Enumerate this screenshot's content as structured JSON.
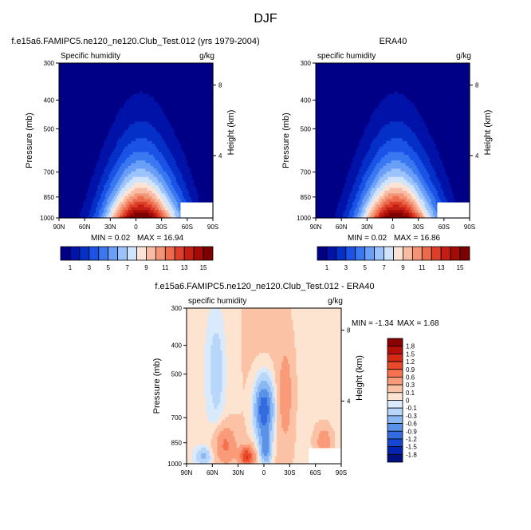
{
  "page_title": "DJF",
  "chart_data": [
    {
      "type": "heatmap",
      "title": "f.e15a6.FAMIPC5.ne120_ne120.Club_Test.012 (yrs 1979-2004)",
      "variable": "Specific humidity",
      "units": "g/kg",
      "ylabel": "Pressure (mb)",
      "ylabel_right": "Height (km)",
      "x_ticks": [
        "90N",
        "60N",
        "30N",
        "0",
        "30S",
        "60S",
        "90S"
      ],
      "y_ticks": [
        "300",
        "400",
        "500",
        "700",
        "850",
        "1000"
      ],
      "height_ticks": [
        "8",
        "4"
      ],
      "min_label": "MIN =  0.02",
      "max_label": "MAX = 16.94",
      "min": 0.02,
      "max": 16.94,
      "contour_levels": [
        1,
        2,
        3,
        4,
        5,
        6,
        7,
        8,
        9,
        10,
        11,
        12,
        13,
        14,
        15
      ],
      "colorbar_labels": [
        "1",
        "3",
        "5",
        "7",
        "9",
        "11",
        "13",
        "15"
      ],
      "colorbar_colors": [
        "#000087",
        "#0012a8",
        "#0530c8",
        "#1a53e6",
        "#3a78f2",
        "#6a9ff8",
        "#9cc3fb",
        "#d0e4fc",
        "#fbe3d6",
        "#f8bca4",
        "#f39476",
        "#ed6a4c",
        "#dd3f2a",
        "#c31e14",
        "#a40a06",
        "#7c0100"
      ]
    },
    {
      "type": "heatmap",
      "title": "ERA40",
      "variable": "specific humidity",
      "units": "g/kg",
      "ylabel": "Pressure (mb)",
      "ylabel_right": "Height (km)",
      "x_ticks": [
        "90N",
        "60N",
        "30N",
        "0",
        "30S",
        "60S",
        "90S"
      ],
      "y_ticks": [
        "300",
        "400",
        "500",
        "700",
        "850",
        "1000"
      ],
      "height_ticks": [
        "8",
        "4"
      ],
      "min_label": "MIN =  0.02",
      "max_label": "MAX = 16.86",
      "min": 0.02,
      "max": 16.86,
      "contour_levels": [
        1,
        2,
        3,
        4,
        5,
        6,
        7,
        8,
        9,
        10,
        11,
        12,
        13,
        14,
        15
      ],
      "colorbar_labels": [
        "1",
        "3",
        "5",
        "7",
        "9",
        "11",
        "13",
        "15"
      ],
      "colorbar_colors": [
        "#000087",
        "#0012a8",
        "#0530c8",
        "#1a53e6",
        "#3a78f2",
        "#6a9ff8",
        "#9cc3fb",
        "#d0e4fc",
        "#fbe3d6",
        "#f8bca4",
        "#f39476",
        "#ed6a4c",
        "#dd3f2a",
        "#c31e14",
        "#a40a06",
        "#7c0100"
      ]
    },
    {
      "type": "heatmap",
      "title": "f.e15a6.FAMIPC5.ne120_ne120.Club_Test.012 - ERA40",
      "variable": "specific humidity",
      "units": "g/kg",
      "ylabel": "Pressure (mb)",
      "ylabel_right": "Height (km)",
      "x_ticks": [
        "90N",
        "60N",
        "30N",
        "0",
        "30S",
        "60S",
        "90S"
      ],
      "y_ticks": [
        "300",
        "400",
        "500",
        "700",
        "850",
        "1000"
      ],
      "height_ticks": [
        "8",
        "4"
      ],
      "min_label": "MIN = -1.34",
      "max_label": "MAX =  1.68",
      "min": -1.34,
      "max": 1.68,
      "contour_levels": [
        -1.8,
        -1.5,
        -1.2,
        -0.9,
        -0.6,
        -0.3,
        -0.1,
        0,
        0.1,
        0.3,
        0.6,
        0.9,
        1.2,
        1.5,
        1.8
      ],
      "colorbar_labels": [
        "1.8",
        "1.5",
        "1.2",
        "0.9",
        "0.6",
        "0.3",
        "0.1",
        "0",
        "-0.1",
        "-0.3",
        "-0.6",
        "-0.9",
        "-1.2",
        "-1.5",
        "-1.8"
      ],
      "colorbar_colors": [
        "#8b0000",
        "#b50e08",
        "#d42a14",
        "#ea4a2a",
        "#f5724e",
        "#f99a78",
        "#fbc2a6",
        "#fde4d0",
        "#d8eafb",
        "#b8d6fa",
        "#8bb8f4",
        "#5a92ea",
        "#336be0",
        "#1546cf",
        "#0423b0",
        "#00107c"
      ]
    }
  ]
}
